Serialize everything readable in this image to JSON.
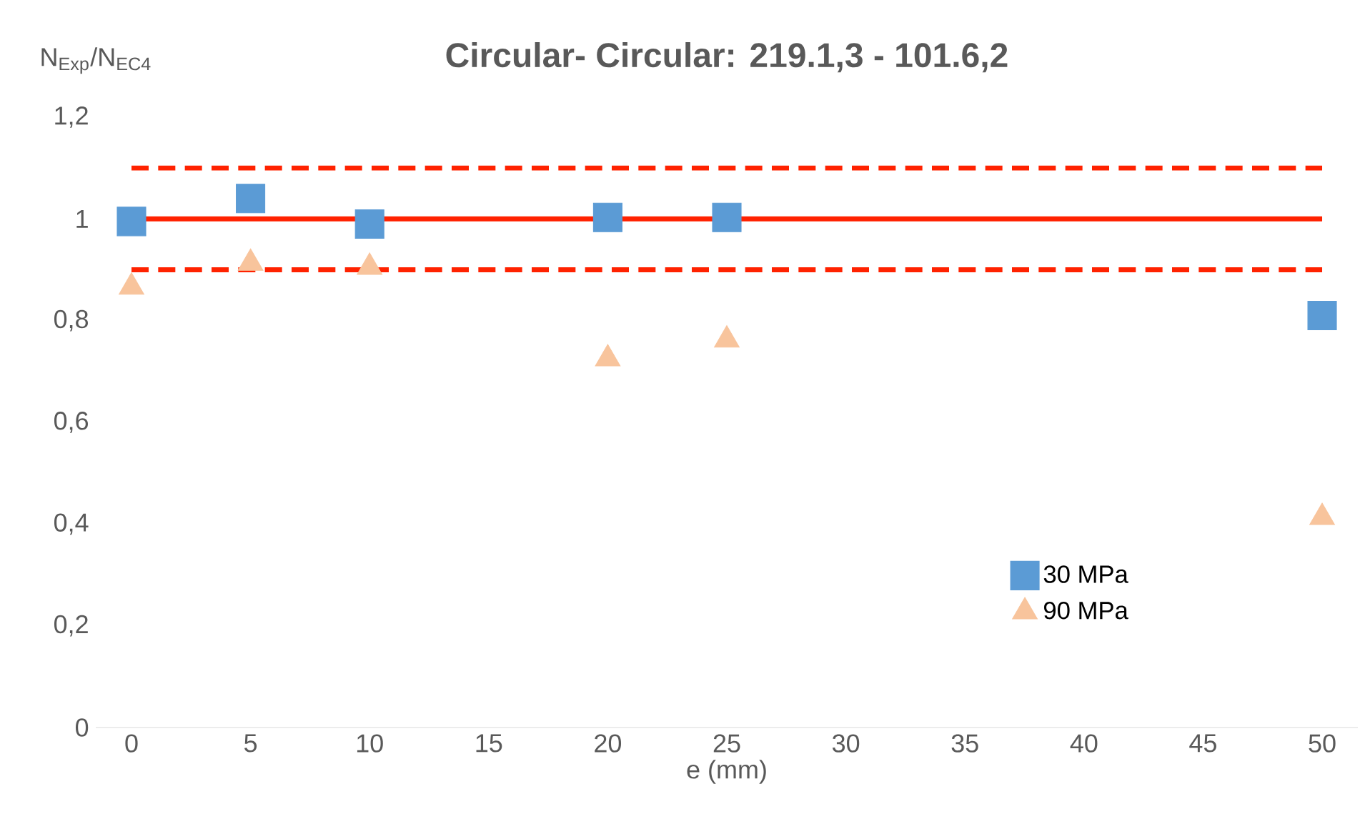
{
  "chart_data": {
    "type": "scatter",
    "title": "Circular- Circular: 219.1,3 - 101.6,2",
    "xlabel": "e (mm)",
    "ylabel": "N$_{Exp}$/N$_{EC4}$",
    "xlim": [
      -1.5,
      51.5
    ],
    "xticks": [
      0,
      5,
      10,
      15,
      20,
      25,
      30,
      35,
      40,
      45,
      50
    ],
    "ylim": [
      0,
      1.2
    ],
    "yticks": [
      {
        "value": 0,
        "label": "0"
      },
      {
        "value": 0.2,
        "label": "0,2"
      },
      {
        "value": 0.4,
        "label": "0,4"
      },
      {
        "value": 0.6,
        "label": "0,6"
      },
      {
        "value": 0.8,
        "label": "0,8"
      },
      {
        "value": 1,
        "label": "1"
      },
      {
        "value": 1.2,
        "label": "1,2"
      }
    ],
    "series": [
      {
        "name": "30 MPa",
        "color": "#5b9bd5",
        "marker": "square",
        "x": [
          0,
          5,
          10,
          20,
          25,
          50
        ],
        "values": [
          0.995,
          1.04,
          0.99,
          1.003,
          1.003,
          0.81
        ]
      },
      {
        "name": "90 MPa",
        "color": "#f8c49c",
        "marker": "triangle",
        "x": [
          0,
          5,
          10,
          20,
          25,
          50
        ],
        "values": [
          0.866,
          0.913,
          0.905,
          0.725,
          0.762,
          0.413
        ]
      }
    ],
    "ref_lines": [
      {
        "axis": "y",
        "value": 1,
        "color": "#ff2200",
        "line_style": "solid"
      },
      {
        "axis": "y",
        "value": 1.1,
        "color": "#ff2200",
        "line_style": "dashed"
      },
      {
        "axis": "y",
        "value": 0.9,
        "color": "#ff2200",
        "line_style": "dashed"
      }
    ],
    "legend": "bottom right",
    "grid": false
  }
}
